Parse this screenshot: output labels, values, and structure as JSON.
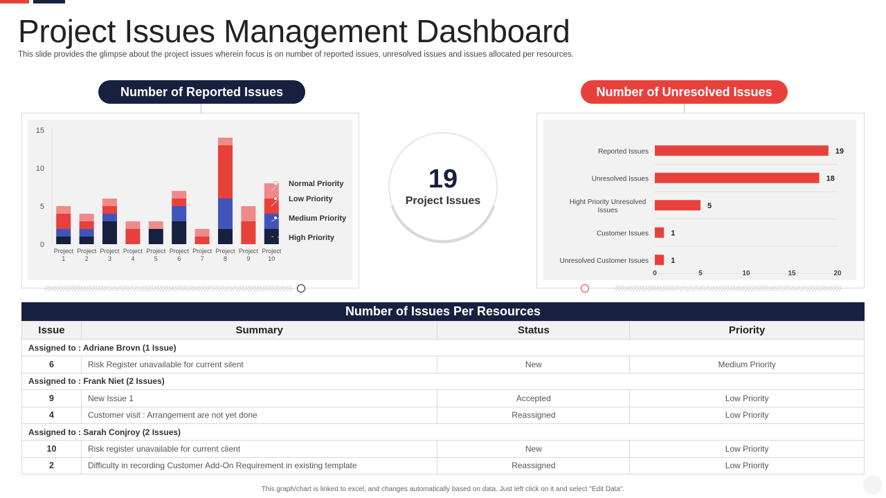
{
  "header": {
    "title": "Project Issues Management Dashboard",
    "subtitle": "This slide provides the glimpse about the project issues wherein focus is on number of reported issues, unresolved issues and issues allocated per resources."
  },
  "colors": {
    "navy": "#17203f",
    "red": "#e8413c",
    "blue": "#4055b9",
    "pink": "#f08a8a"
  },
  "reported": {
    "heading": "Number of Reported Issues"
  },
  "unresolved": {
    "heading": "Number of Unresolved Issues"
  },
  "gauge": {
    "value": "19",
    "label": "Project Issues"
  },
  "chart_data": [
    {
      "type": "bar",
      "stacked": true,
      "categories": [
        "Project 1",
        "Project 2",
        "Project 3",
        "Project 4",
        "Project 5",
        "Project 6",
        "Project 7",
        "Project 8",
        "Project 9",
        "Project 10"
      ],
      "series": [
        {
          "name": "High Priority",
          "color": "#17203f",
          "values": [
            1,
            1,
            3,
            0,
            2,
            3,
            0,
            2,
            0,
            2
          ]
        },
        {
          "name": "Medium Priority",
          "color": "#4055b9",
          "values": [
            1,
            1,
            1,
            0,
            0,
            2,
            0,
            4,
            0,
            2
          ]
        },
        {
          "name": "Low Priority",
          "color": "#e8413c",
          "values": [
            2,
            1,
            1,
            2,
            0,
            1,
            1,
            7,
            3,
            2
          ]
        },
        {
          "name": "Normal Priority",
          "color": "#f08a8a",
          "values": [
            1,
            1,
            1,
            1,
            1,
            1,
            1,
            1,
            2,
            2
          ]
        }
      ],
      "legend_order": [
        "Normal Priority",
        "Low Priority",
        "Medium Priority",
        "High Priority"
      ],
      "ylim": [
        0,
        15
      ],
      "yticks": [
        0,
        5,
        10,
        15
      ],
      "legend": "right",
      "grid": false
    },
    {
      "type": "bar",
      "orientation": "horizontal",
      "categories": [
        "Reported Issues",
        "Unresolved Issues",
        "Hight Priority Unresolved Issues",
        "Customer Issues",
        "Unresolved Customer Issues"
      ],
      "values": [
        19,
        18,
        5,
        1,
        1
      ],
      "color": "#e8413c",
      "xlim": [
        0,
        20
      ],
      "xticks": [
        0,
        5,
        10,
        15,
        20
      ],
      "grid": true
    }
  ],
  "table": {
    "heading": "Number of Issues Per Resources",
    "columns": [
      "Issue",
      "Summary",
      "Status",
      "Priority"
    ],
    "groups": [
      {
        "label": "Assigned to : Adriane Brovn (1 Issue)",
        "rows": [
          {
            "issue": "6",
            "summary": "Risk Register unavailable for current silent",
            "status": "New",
            "priority": "Medium Priority"
          }
        ]
      },
      {
        "label": "Assigned to : Frank Niet (2 Issues)",
        "rows": [
          {
            "issue": "9",
            "summary": "New Issue 1",
            "status": "Accepted",
            "priority": "Low Priority"
          },
          {
            "issue": "4",
            "summary": "Customer visit : Arrangement are not yet  done",
            "status": "Reassigned",
            "priority": "Low Priority"
          }
        ]
      },
      {
        "label": "Assigned to : Sarah Conjroy  (2 Issues)",
        "rows": [
          {
            "issue": "10",
            "summary": "Risk register unavailable for current client",
            "status": "New",
            "priority": "Low Priority"
          },
          {
            "issue": "2",
            "summary": "Difficulty in recording Customer Add-On Requirement in existing template",
            "status": "Reassigned",
            "priority": "Low Priority"
          }
        ]
      }
    ]
  },
  "footer": {
    "note": "This graph/chart is linked to excel, and changes automatically based on data. Just left click on it and select \"Edit Data\"."
  }
}
